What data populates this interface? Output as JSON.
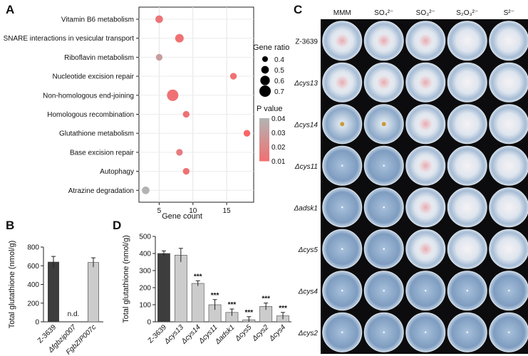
{
  "panels": {
    "a": "A",
    "b": "B",
    "c": "C",
    "d": "D"
  },
  "chart_data": [
    {
      "id": "A",
      "type": "scatter",
      "xlabel": "Gene count",
      "xlim": [
        2,
        19
      ],
      "xticks": [
        5,
        10,
        15
      ],
      "pathways": [
        "Vitamin B6 metabolism",
        "SNARE interactions in vesicular transport",
        "Riboflavin metabolism",
        "Nucleotide excision repair",
        "Non-homologous end-joining",
        "Homologous recombination",
        "Glutathione metabolism",
        "Base excision repair",
        "Autophagy",
        "Atrazine degradation"
      ],
      "gene_count": [
        5,
        8,
        5,
        16,
        7,
        9,
        18,
        8,
        9,
        3
      ],
      "gene_ratio": [
        0.5,
        0.55,
        0.45,
        0.45,
        0.7,
        0.45,
        0.45,
        0.45,
        0.45,
        0.5
      ],
      "p_value": [
        0.012,
        0.01,
        0.03,
        0.01,
        0.01,
        0.01,
        0.005,
        0.015,
        0.01,
        0.04
      ],
      "size_legend": {
        "title": "Gene ratio",
        "values": [
          0.4,
          0.5,
          0.6,
          0.7
        ],
        "labels": [
          "0.4",
          "0.5",
          "0.6",
          "0.7"
        ]
      },
      "color_legend": {
        "title": "P value",
        "values": [
          0.04,
          0.03,
          0.02,
          0.01
        ],
        "labels": [
          "0.04",
          "0.03",
          "0.02",
          "0.01"
        ],
        "high_color": "#b3b3b3",
        "low_color": "#f07173"
      }
    },
    {
      "id": "B",
      "type": "bar",
      "ylabel": "Total glutathione (nmol/g)",
      "ylim": [
        0,
        800
      ],
      "yticks": [
        0,
        200,
        400,
        600,
        800
      ],
      "categories": [
        "Z-3639",
        "Δfgbzip007",
        "FgbZIP007c"
      ],
      "values": [
        640,
        0,
        635
      ],
      "errors": [
        60,
        0,
        50
      ],
      "colors": [
        "#3d3d3d",
        "#3d3d3d",
        "#cccccc"
      ],
      "annotations": [
        "",
        "n.d.",
        ""
      ]
    },
    {
      "id": "D",
      "type": "bar",
      "ylabel": "Total glutathione (nmol/g)",
      "ylim": [
        0,
        500
      ],
      "yticks": [
        0,
        100,
        200,
        300,
        400,
        500
      ],
      "categories": [
        "Z-3639",
        "Δcys13",
        "Δcys14",
        "Δcys11",
        "Δadsk1",
        "Δcys5",
        "Δcys2",
        "Δcys4"
      ],
      "values": [
        400,
        390,
        225,
        100,
        55,
        12,
        90,
        35
      ],
      "errors": [
        15,
        40,
        15,
        30,
        20,
        18,
        20,
        20
      ],
      "colors": [
        "#3d3d3d",
        "#cccccc",
        "#cccccc",
        "#cccccc",
        "#cccccc",
        "#cccccc",
        "#cccccc",
        "#cccccc"
      ],
      "annotations": [
        "",
        "",
        "***",
        "***",
        "***",
        "***",
        "***",
        "***"
      ]
    },
    {
      "id": "C",
      "type": "table",
      "columns": [
        "MMM",
        "SO₄²⁻",
        "SO₃²⁻",
        "S₂O₃²⁻",
        "S²⁻"
      ],
      "rows": [
        "Z-3639",
        "Δcys13",
        "Δcys14",
        "Δcys11",
        "Δadsk1",
        "Δcys5",
        "Δcys4",
        "Δcys2"
      ],
      "growth": [
        [
          3,
          3,
          3,
          3,
          3
        ],
        [
          3,
          3,
          3,
          3,
          3
        ],
        [
          1,
          1,
          3,
          3,
          3
        ],
        [
          0,
          0,
          3,
          3,
          3
        ],
        [
          0,
          0,
          3,
          3,
          3
        ],
        [
          0,
          0,
          3,
          3,
          3
        ],
        [
          0,
          0,
          0,
          0,
          0
        ],
        [
          0,
          0,
          0,
          0,
          0
        ]
      ]
    }
  ]
}
